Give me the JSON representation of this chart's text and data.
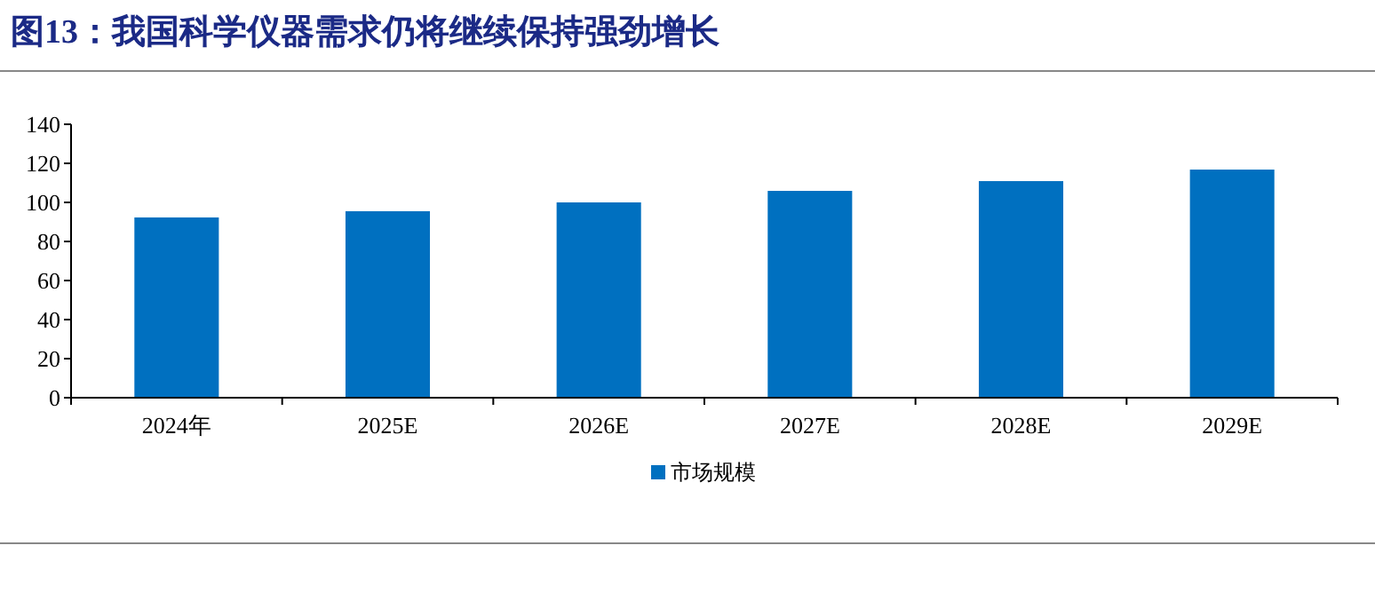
{
  "chart_data": {
    "type": "bar",
    "title": "图13：我国科学仪器需求仍将继续保持强劲增长",
    "categories": [
      "2024年",
      "2025E",
      "2026E",
      "2027E",
      "2028E",
      "2029E"
    ],
    "series": [
      {
        "name": "市场规模",
        "color": "#0070c0",
        "values": [
          92.3,
          95.5,
          100,
          105.9,
          110.9,
          116.8
        ]
      }
    ],
    "ylim": [
      0,
      140
    ],
    "yticks": [
      0,
      20,
      40,
      60,
      80,
      100,
      120,
      140
    ],
    "legend": "bottom"
  }
}
